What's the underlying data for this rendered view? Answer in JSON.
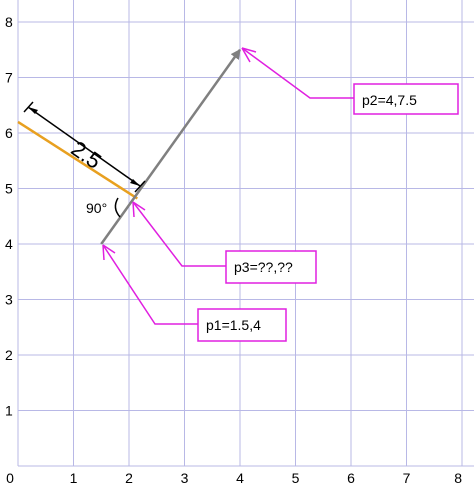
{
  "axes": {
    "x_ticks": [
      "0",
      "1",
      "2",
      "3",
      "4",
      "5",
      "6",
      "7",
      "8"
    ],
    "y_ticks": [
      "1",
      "2",
      "3",
      "4",
      "5",
      "6",
      "7",
      "8"
    ],
    "xlim": [
      0,
      8
    ],
    "ylim": [
      0,
      8
    ],
    "grid": true
  },
  "points": {
    "p1": {
      "x": 1.5,
      "y": 4
    },
    "p2": {
      "x": 4,
      "y": 7.5
    },
    "p3": {
      "x": 2.15,
      "y": 4.82
    },
    "orange_start": {
      "x": 0,
      "y": 6.2
    }
  },
  "labels": {
    "p1": "p1=1.5,4",
    "p2": "p2=4,7.5",
    "p3": "p3=??,??",
    "distance": "2.5",
    "angle": "90°"
  },
  "colors": {
    "grid": "#b8b8e6",
    "vector": "#808080",
    "orange": "#e8a020",
    "callout": "#e020e0",
    "text": "#000000"
  }
}
